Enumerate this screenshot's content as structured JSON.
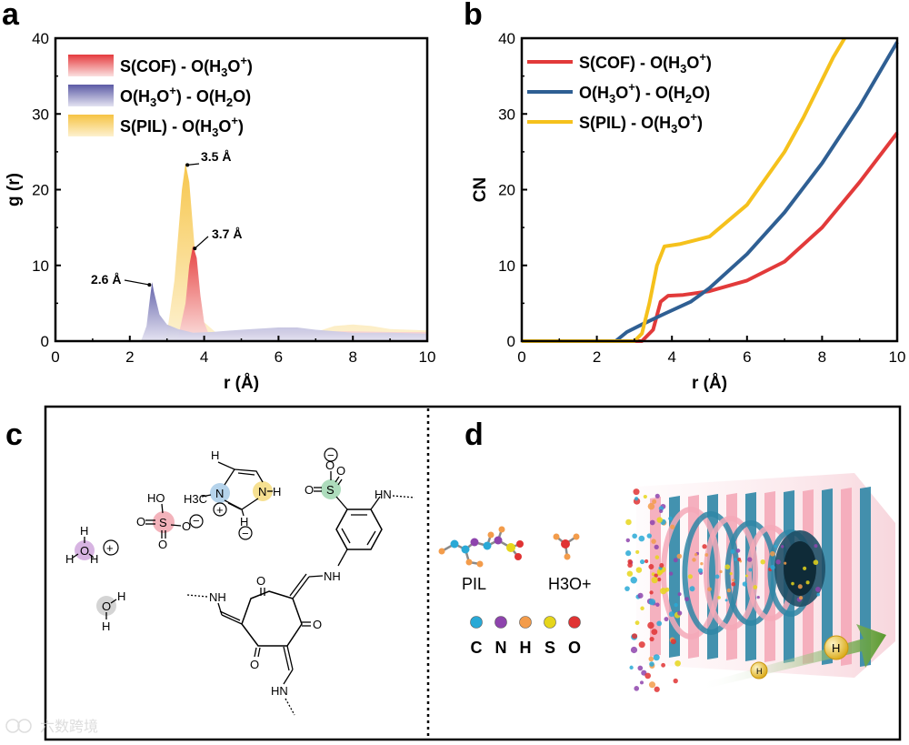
{
  "colors": {
    "red": "#e23a3a",
    "blue": "#2f5f93",
    "yellow": "#f5c11c",
    "rdf_red": "#e53b3e",
    "rdf_blue": "#5b5aa5",
    "rdf_yellow": "#f6c343"
  },
  "chart_data": [
    {
      "panel": "a",
      "type": "area",
      "xlabel": "r (Å)",
      "ylabel": "g (r)",
      "xlim": [
        0,
        10
      ],
      "ylim": [
        0,
        40
      ],
      "xticks": [
        "0",
        "2",
        "4",
        "6",
        "8",
        "10"
      ],
      "yticks": [
        "0",
        "10",
        "20",
        "30",
        "40"
      ],
      "legend": {
        "position": "top-left",
        "entries": [
          "S(COF) - O(H3O+)",
          "O(H3O+) - O(H2O)",
          "S(PIL) - O(H3O+)"
        ]
      },
      "series": [
        {
          "name": "S(PIL) - O(H3O+)",
          "color_key": "rdf_yellow",
          "x": [
            0,
            2.8,
            3.0,
            3.2,
            3.4,
            3.5,
            3.6,
            3.8,
            4.0,
            4.3,
            4.8,
            5.5,
            6.5,
            7.0,
            7.5,
            8.0,
            8.5,
            9.0,
            10.0
          ],
          "y": [
            0,
            0,
            1,
            8,
            20,
            23.5,
            21,
            9,
            2.5,
            1.2,
            1.1,
            1.1,
            1.1,
            1.2,
            2.0,
            2.2,
            2.0,
            1.6,
            1.4
          ]
        },
        {
          "name": "S(COF) - O(H3O+)",
          "color_key": "rdf_red",
          "x": [
            0,
            3.1,
            3.3,
            3.5,
            3.6,
            3.7,
            3.8,
            3.9,
            4.0,
            4.1,
            4.3,
            4.6,
            5.0,
            6.0,
            7.0,
            8.0,
            9.0,
            10.0
          ],
          "y": [
            0,
            0,
            0.5,
            5,
            10,
            12.6,
            11,
            6,
            2.5,
            1.2,
            1.2,
            1.3,
            1.3,
            1.3,
            1.3,
            1.3,
            1.2,
            1.2
          ]
        },
        {
          "name": "O(H3O+) - O(H2O)",
          "color_key": "rdf_blue",
          "x": [
            0,
            2.3,
            2.45,
            2.55,
            2.6,
            2.65,
            2.8,
            3.0,
            3.3,
            3.7,
            4.2,
            5.0,
            6.0,
            6.5,
            7.0,
            8.0,
            9.0,
            10.0
          ],
          "y": [
            0,
            0,
            2,
            6,
            7.8,
            6.5,
            3.5,
            2.2,
            1.6,
            1.1,
            1.2,
            1.5,
            1.8,
            1.8,
            1.5,
            1.1,
            1.1,
            1.0
          ]
        }
      ],
      "annotations": [
        {
          "text": "2.6 Å",
          "x": 2.6,
          "y": 7.8
        },
        {
          "text": "3.5 Å",
          "x": 3.5,
          "y": 23.5
        },
        {
          "text": "3.7 Å",
          "x": 3.7,
          "y": 12.6
        }
      ]
    },
    {
      "panel": "b",
      "type": "line",
      "xlabel": "r (Å)",
      "ylabel": "CN",
      "xlim": [
        0,
        10
      ],
      "ylim": [
        0,
        40
      ],
      "xticks": [
        "0",
        "2",
        "4",
        "6",
        "8",
        "10"
      ],
      "yticks": [
        "0",
        "10",
        "20",
        "30",
        "40"
      ],
      "legend": {
        "position": "top-left",
        "entries": [
          "S(COF) - O(H3O+)",
          "O(H3O+) - O(H2O)",
          "S(PIL) - O(H3O+)"
        ]
      },
      "series": [
        {
          "name": "S(COF) - O(H3O+)",
          "color_key": "red",
          "x": [
            0,
            3.2,
            3.5,
            3.7,
            3.9,
            4.3,
            5.0,
            6.0,
            7.0,
            8.0,
            9.0,
            10.0
          ],
          "y": [
            0,
            0,
            1.5,
            5.2,
            6.0,
            6.1,
            6.6,
            8.0,
            10.5,
            15.0,
            21.0,
            27.5
          ]
        },
        {
          "name": "O(H3O+) - O(H2O)",
          "color_key": "blue",
          "x": [
            0,
            2.5,
            2.8,
            3.2,
            3.8,
            4.5,
            5.0,
            6.0,
            7.0,
            8.0,
            9.0,
            10.0
          ],
          "y": [
            0,
            0,
            1.2,
            2.2,
            3.6,
            5.2,
            7.0,
            11.5,
            17.0,
            23.5,
            31.0,
            39.5
          ]
        },
        {
          "name": "S(PIL) - O(H3O+)",
          "color_key": "yellow",
          "x": [
            0,
            3.0,
            3.2,
            3.4,
            3.6,
            3.8,
            4.2,
            5.0,
            6.0,
            7.0,
            7.5,
            8.0,
            8.3,
            8.6
          ],
          "y": [
            0,
            0,
            1.0,
            5.0,
            10.0,
            12.5,
            12.8,
            13.8,
            18.0,
            25.0,
            29.5,
            34.5,
            37.5,
            40.0
          ]
        }
      ]
    }
  ],
  "panel_a": {
    "letter": "a"
  },
  "panel_b": {
    "letter": "b"
  },
  "panel_c": {
    "letter": "c",
    "labels": {
      "H": "H",
      "O": "O",
      "N": "N",
      "S": "S",
      "HO": "HO",
      "HN": "HN",
      "NH": "NH",
      "H3C": "H3C",
      "plus": "+",
      "minus": "−",
      "sub3": "3"
    }
  },
  "panel_d": {
    "letter": "d",
    "pil_label": "PIL",
    "h3o_label": "H3O+",
    "atoms": [
      {
        "symbol": "C",
        "color": "#29a9d6"
      },
      {
        "symbol": "N",
        "color": "#8e44ad"
      },
      {
        "symbol": "H",
        "color": "#f39c4b"
      },
      {
        "symbol": "S",
        "color": "#e6d61b"
      },
      {
        "symbol": "O",
        "color": "#e03333"
      }
    ],
    "proton_label": "H"
  },
  "watermark": "六数跨境"
}
